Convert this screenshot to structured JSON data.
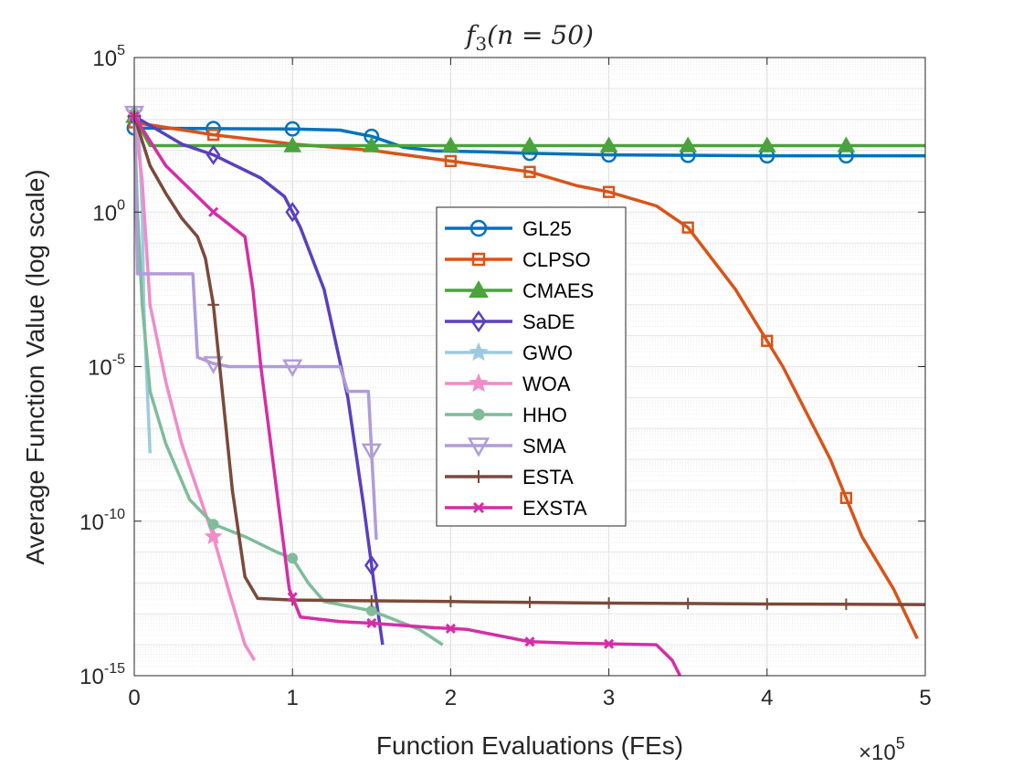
{
  "chart_data": {
    "type": "line",
    "title": "f3(n = 50)",
    "title_parts": {
      "func": "f",
      "sub": "3",
      "args": "(n = 50)"
    },
    "xlabel": "Function Evaluations (FEs)",
    "ylabel": "Average Function Value (log scale)",
    "x_multiplier": {
      "base": "×10",
      "exp": "5"
    },
    "xlim": [
      0,
      5
    ],
    "ylim_log10": [
      -15,
      5
    ],
    "xticks": [
      {
        "v": 0,
        "label": "0"
      },
      {
        "v": 1,
        "label": "1"
      },
      {
        "v": 2,
        "label": "2"
      },
      {
        "v": 3,
        "label": "3"
      },
      {
        "v": 4,
        "label": "4"
      },
      {
        "v": 5,
        "label": "5"
      }
    ],
    "yticks": [
      {
        "v": 5,
        "base": "10",
        "exp": "5"
      },
      {
        "v": 0,
        "base": "10",
        "exp": "0"
      },
      {
        "v": -5,
        "base": "10",
        "exp": "-5"
      },
      {
        "v": -10,
        "base": "10",
        "exp": "-10"
      },
      {
        "v": -15,
        "base": "10",
        "exp": "-15"
      }
    ],
    "grid": true,
    "legend_position": "center",
    "series": [
      {
        "name": "GL25",
        "color": "#0072bd",
        "marker": "circle",
        "points": [
          [
            0,
            2.72
          ],
          [
            0.5,
            2.7
          ],
          [
            1,
            2.69
          ],
          [
            1.3,
            2.65
          ],
          [
            1.5,
            2.45
          ],
          [
            1.7,
            2.1
          ],
          [
            1.9,
            1.98
          ],
          [
            2.2,
            1.95
          ],
          [
            2.5,
            1.9
          ],
          [
            3,
            1.85
          ],
          [
            4,
            1.82
          ],
          [
            5,
            1.82
          ]
        ],
        "marker_x": [
          0.5,
          1.0,
          1.5,
          2.5,
          3.0,
          3.5,
          4.0,
          4.5
        ]
      },
      {
        "name": "CLPSO",
        "color": "#d95319",
        "marker": "square",
        "points": [
          [
            0,
            2.9
          ],
          [
            0.5,
            2.5
          ],
          [
            1,
            2.2
          ],
          [
            1.5,
            2.0
          ],
          [
            2,
            1.65
          ],
          [
            2.5,
            1.3
          ],
          [
            2.8,
            0.85
          ],
          [
            3,
            0.65
          ],
          [
            3.3,
            0.2
          ],
          [
            3.5,
            -0.5
          ],
          [
            3.8,
            -2.5
          ],
          [
            4.1,
            -5.0
          ],
          [
            4.4,
            -8.0
          ],
          [
            4.6,
            -10.5
          ],
          [
            4.8,
            -12.2
          ],
          [
            4.95,
            -13.8
          ]
        ],
        "marker_x": [
          0.5,
          2.0,
          2.5,
          3.0,
          3.5,
          4.0,
          4.5
        ]
      },
      {
        "name": "CMAES",
        "color": "#4aa33b",
        "marker": "triangle-up",
        "points": [
          [
            0,
            3.1
          ],
          [
            0.05,
            2.6
          ],
          [
            0.1,
            2.15
          ],
          [
            0.5,
            2.15
          ],
          [
            1,
            2.15
          ],
          [
            2,
            2.15
          ],
          [
            3,
            2.15
          ],
          [
            4,
            2.15
          ],
          [
            5,
            2.15
          ]
        ],
        "marker_x": [
          1.0,
          1.5,
          2.0,
          2.5,
          3.0,
          3.5,
          4.0,
          4.5
        ]
      },
      {
        "name": "SaDE",
        "color": "#5b3fbf",
        "marker": "diamond",
        "points": [
          [
            0,
            3.1
          ],
          [
            0.3,
            2.2
          ],
          [
            0.5,
            1.85
          ],
          [
            0.8,
            1.1
          ],
          [
            0.95,
            0.5
          ],
          [
            1.05,
            -0.5
          ],
          [
            1.2,
            -2.5
          ],
          [
            1.35,
            -6.0
          ],
          [
            1.45,
            -9.5
          ],
          [
            1.52,
            -12.2
          ],
          [
            1.57,
            -14.0
          ]
        ],
        "marker_x": [
          0.5,
          1.0,
          1.5
        ]
      },
      {
        "name": "GWO",
        "color": "#9ecae1",
        "marker": "star",
        "points": [
          [
            0,
            3.2
          ],
          [
            0.03,
            2.5
          ],
          [
            0.05,
            0
          ],
          [
            0.06,
            -3
          ],
          [
            0.08,
            -5.5
          ],
          [
            0.1,
            -7.8
          ]
        ],
        "marker_x": []
      },
      {
        "name": "WOA",
        "color": "#f08cc8",
        "marker": "star",
        "points": [
          [
            0,
            3.2
          ],
          [
            0.05,
            1.0
          ],
          [
            0.1,
            -3.0
          ],
          [
            0.2,
            -5.5
          ],
          [
            0.3,
            -7.5
          ],
          [
            0.4,
            -9.0
          ],
          [
            0.5,
            -10.5
          ],
          [
            0.6,
            -12.3
          ],
          [
            0.7,
            -14.0
          ],
          [
            0.76,
            -14.5
          ]
        ],
        "marker_x": [
          0.5
        ]
      },
      {
        "name": "HHO",
        "color": "#7fbc9a",
        "marker": "dot",
        "points": [
          [
            0,
            3.2
          ],
          [
            0.02,
            0
          ],
          [
            0.05,
            -3
          ],
          [
            0.1,
            -5.8
          ],
          [
            0.2,
            -7.5
          ],
          [
            0.35,
            -9.3
          ],
          [
            0.5,
            -10.1
          ],
          [
            0.7,
            -10.5
          ],
          [
            0.9,
            -11.0
          ],
          [
            1,
            -11.2
          ],
          [
            1.1,
            -12.0
          ],
          [
            1.2,
            -12.6
          ],
          [
            1.5,
            -12.9
          ],
          [
            1.8,
            -13.5
          ],
          [
            1.95,
            -14.0
          ]
        ],
        "marker_x": [
          0.5,
          1.0,
          1.5
        ]
      },
      {
        "name": "SMA",
        "color": "#b19cd9",
        "marker": "triangle-down",
        "points": [
          [
            0,
            3.2
          ],
          [
            0.02,
            -2.0
          ],
          [
            0.37,
            -2.0
          ],
          [
            0.4,
            -4.7
          ],
          [
            0.5,
            -4.9
          ],
          [
            0.6,
            -5.0
          ],
          [
            1,
            -5.0
          ],
          [
            1.3,
            -5.0
          ],
          [
            1.35,
            -5.8
          ],
          [
            1.48,
            -5.8
          ],
          [
            1.53,
            -10.6
          ]
        ],
        "marker_x": [
          0.5,
          1.0,
          1.5
        ]
      },
      {
        "name": "ESTA",
        "color": "#7a4a3a",
        "marker": "plus",
        "points": [
          [
            0,
            3.1
          ],
          [
            0.1,
            1.5
          ],
          [
            0.2,
            0.6
          ],
          [
            0.3,
            -0.2
          ],
          [
            0.4,
            -0.8
          ],
          [
            0.45,
            -1.5
          ],
          [
            0.5,
            -3.0
          ],
          [
            0.55,
            -5.5
          ],
          [
            0.62,
            -9.0
          ],
          [
            0.7,
            -11.8
          ],
          [
            0.78,
            -12.5
          ],
          [
            1,
            -12.55
          ],
          [
            2,
            -12.6
          ],
          [
            3,
            -12.65
          ],
          [
            4,
            -12.68
          ],
          [
            5,
            -12.7
          ]
        ],
        "marker_x": [
          0.5,
          1.0,
          1.5,
          2.0,
          2.5,
          3.0,
          3.5,
          4.0,
          4.5
        ]
      },
      {
        "name": "EXSTA",
        "color": "#d62da6",
        "marker": "x",
        "points": [
          [
            0,
            3.1
          ],
          [
            0.2,
            1.5
          ],
          [
            0.5,
            0
          ],
          [
            0.7,
            -0.8
          ],
          [
            0.75,
            -2.5
          ],
          [
            0.8,
            -5.0
          ],
          [
            0.9,
            -9.0
          ],
          [
            0.98,
            -12.2
          ],
          [
            1.05,
            -13.1
          ],
          [
            1.3,
            -13.25
          ],
          [
            1.5,
            -13.3
          ],
          [
            1.9,
            -13.45
          ],
          [
            2.1,
            -13.5
          ],
          [
            2.3,
            -13.7
          ],
          [
            2.5,
            -13.9
          ],
          [
            2.8,
            -13.95
          ],
          [
            3.3,
            -14.0
          ],
          [
            3.4,
            -14.5
          ],
          [
            3.45,
            -15.0
          ]
        ],
        "marker_x": [
          0.5,
          1.0,
          1.5,
          2.0,
          2.5,
          3.0
        ]
      }
    ]
  }
}
